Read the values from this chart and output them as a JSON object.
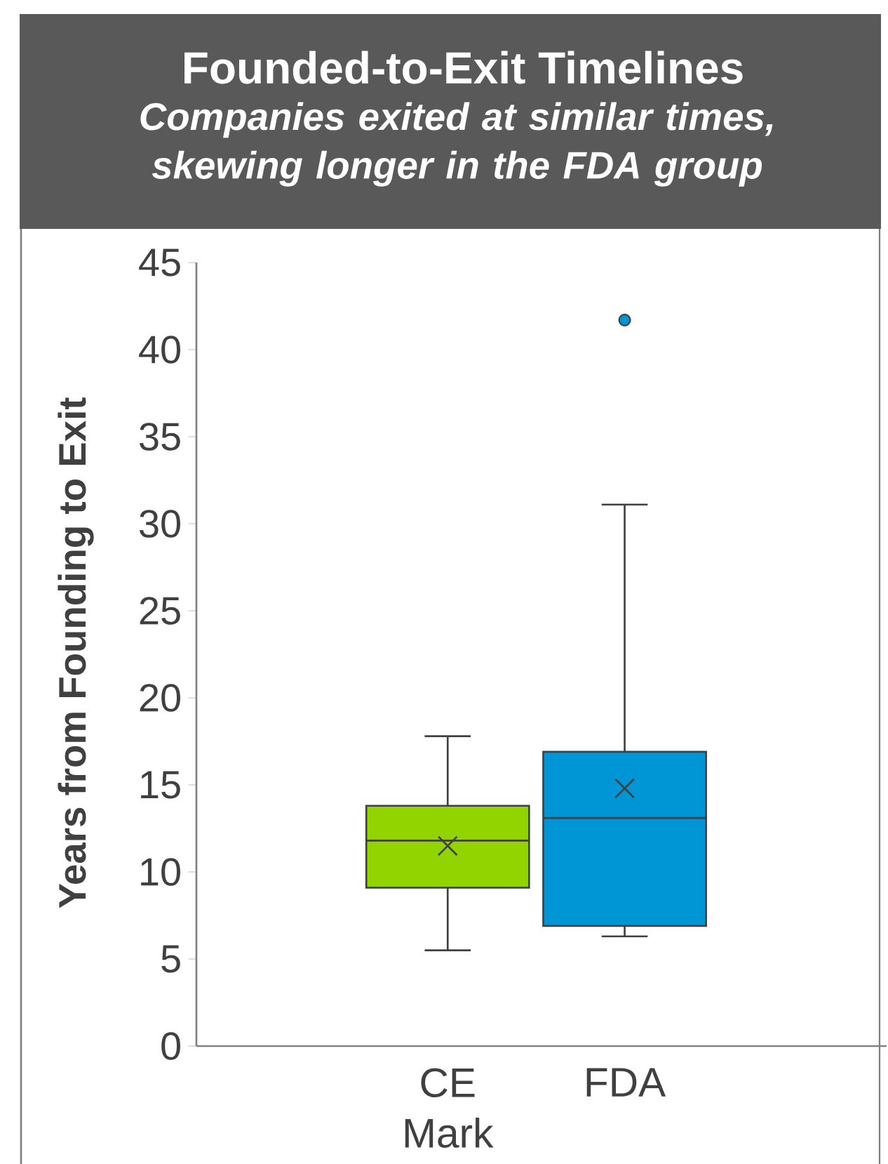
{
  "chart_data": {
    "type": "box",
    "title": "Founded-to-Exit Timelines",
    "subtitle": "Companies exited at similar times, skewing longer in the FDA group",
    "ylabel": "Years from Founding to Exit",
    "categories": [
      "CE Mark",
      "FDA"
    ],
    "colors": [
      "#92d400",
      "#0096d6"
    ],
    "boxes": [
      {
        "low": 5.5,
        "q1": 9.1,
        "median": 11.8,
        "q3": 13.8,
        "high": 17.8,
        "mean": 11.5
      },
      {
        "low": 6.3,
        "q1": 6.9,
        "median": 13.1,
        "q3": 16.9,
        "high": 31.1,
        "mean": 14.8,
        "outliers": [
          41.7
        ]
      }
    ],
    "ylim": [
      0,
      45
    ],
    "yticks": [
      0,
      5,
      10,
      15,
      20,
      25,
      30,
      35,
      40,
      45
    ]
  }
}
